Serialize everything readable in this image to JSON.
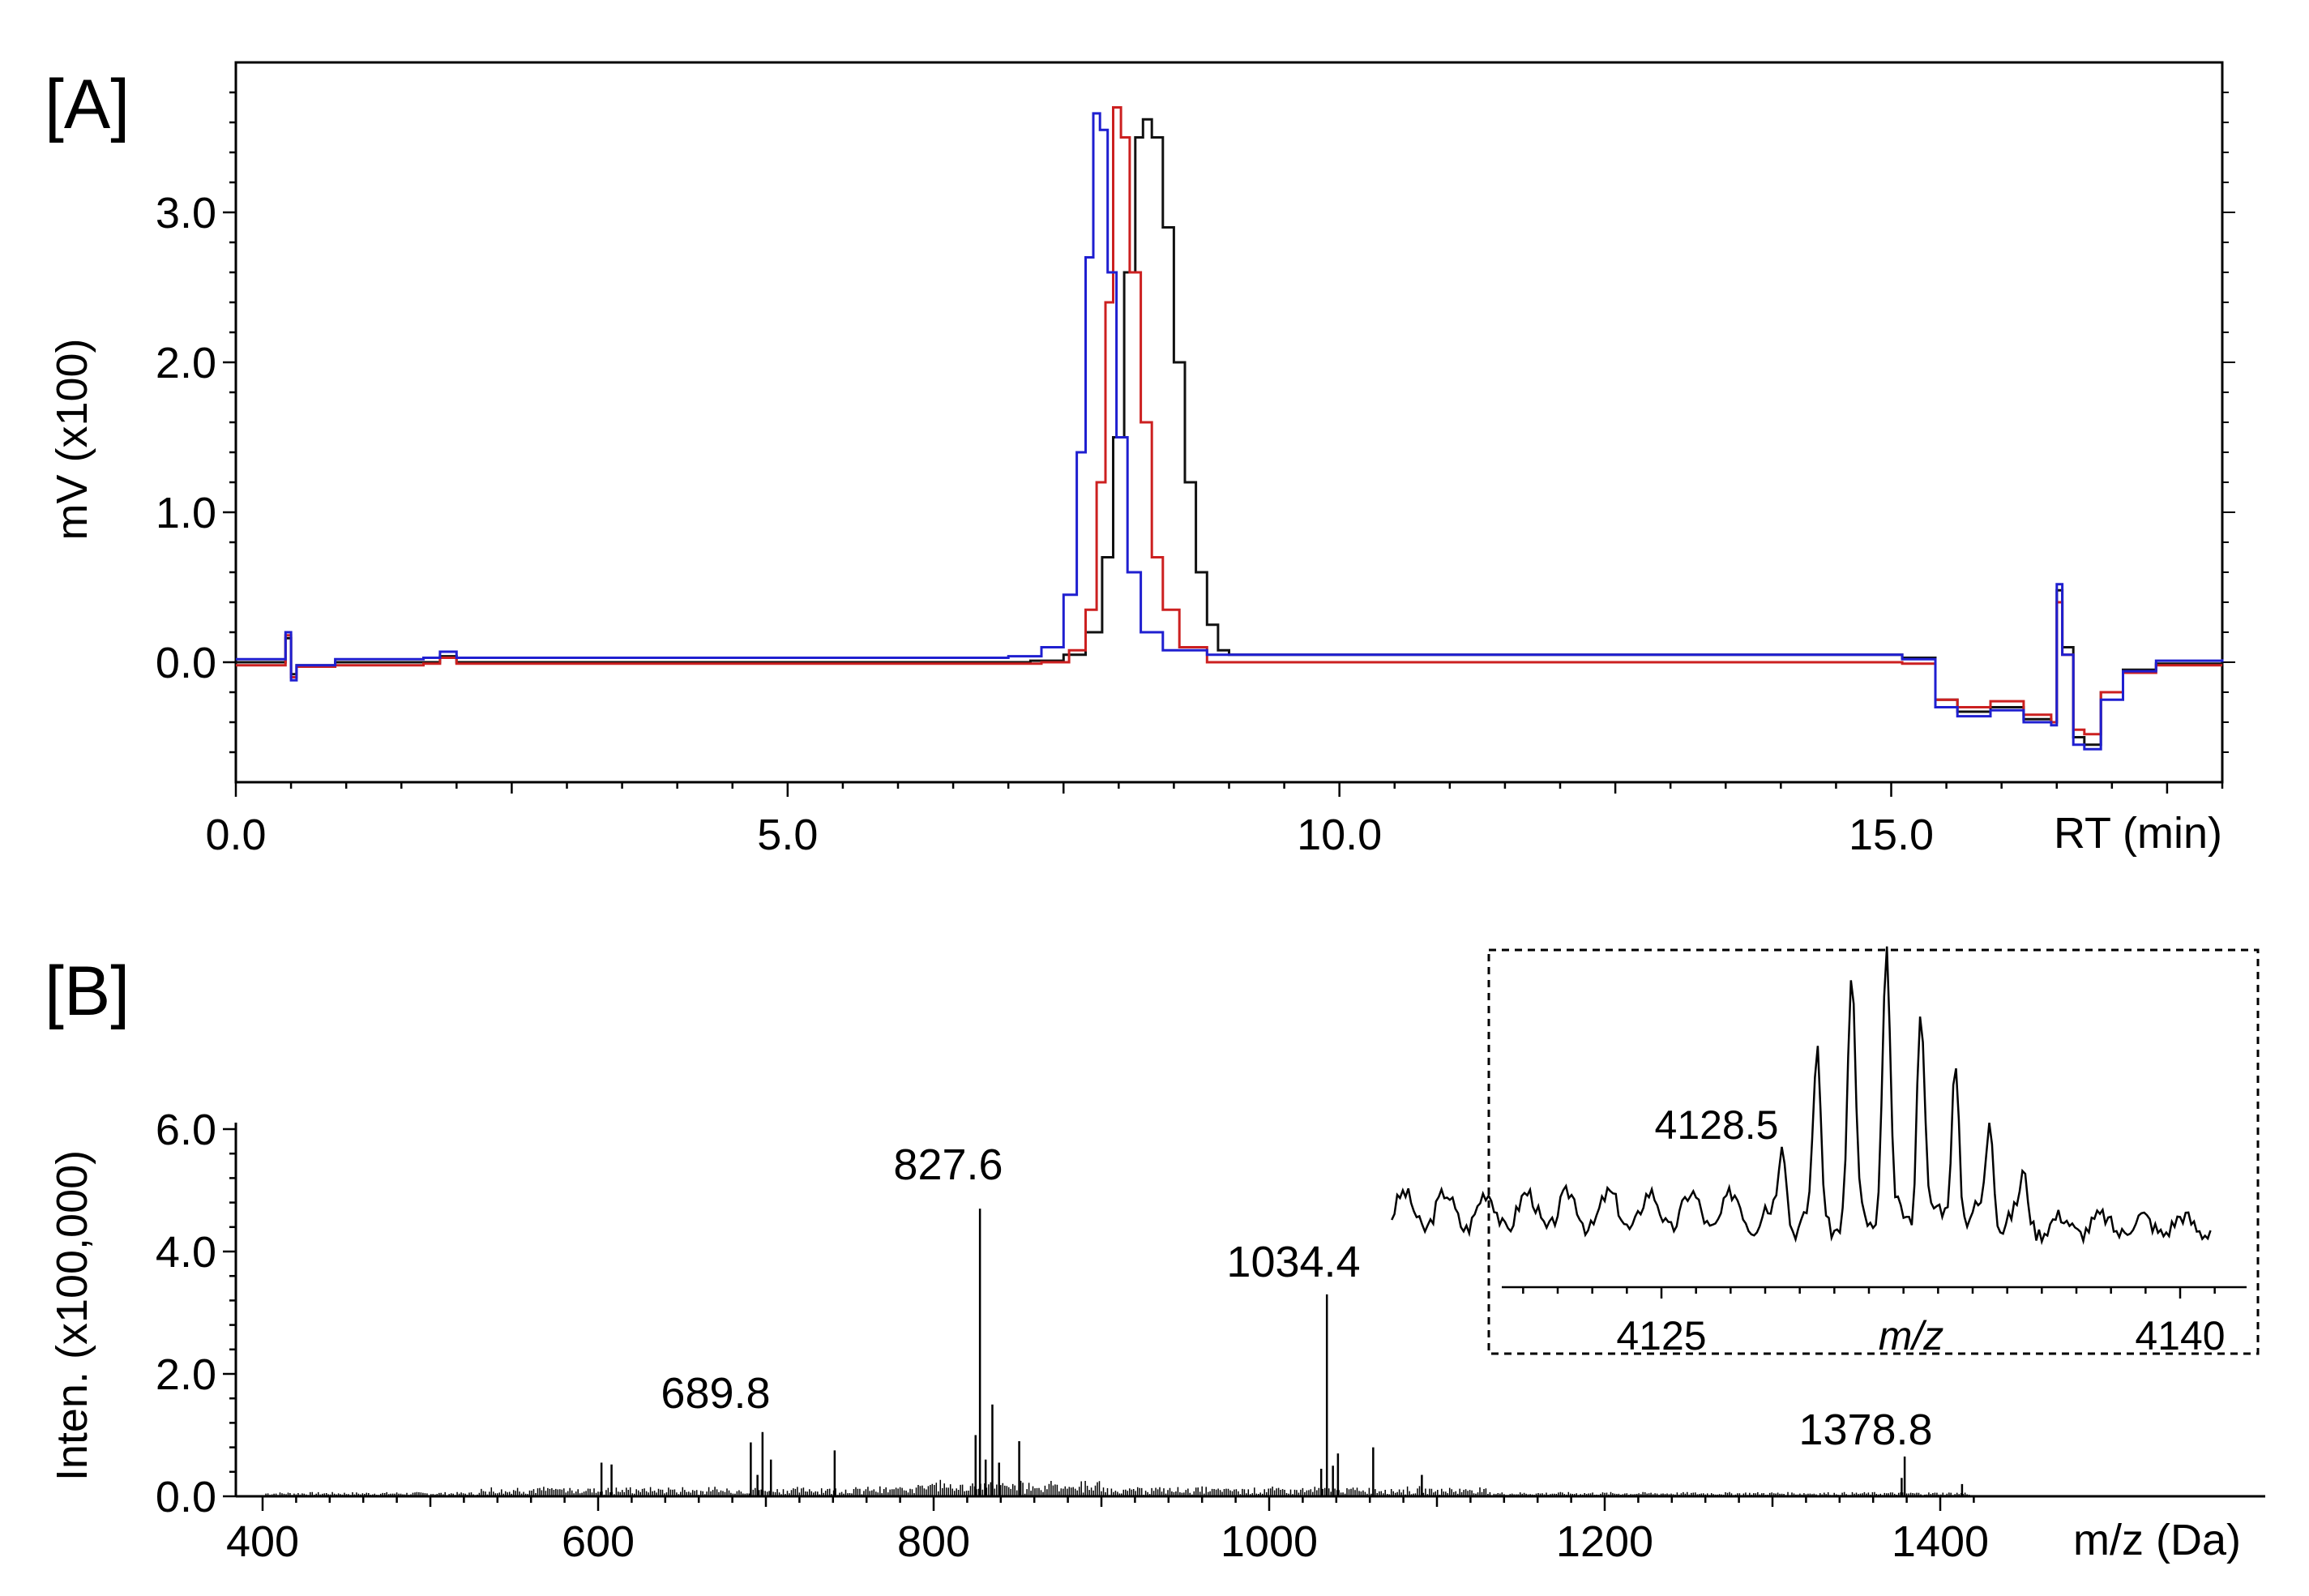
{
  "figure": {
    "panel_a_label": "[A]",
    "panel_b_label": "[B]"
  },
  "chart_data": [
    {
      "type": "line",
      "panel": "[A]",
      "xlabel": "RT (min)",
      "ylabel": "mV (x100)",
      "xlim": [
        0,
        18
      ],
      "ylim": [
        -0.8,
        4.0
      ],
      "x_tick_labels": [
        "0.0",
        "5.0",
        "10.0",
        "15.0"
      ],
      "x_ticks": [
        0,
        5,
        10,
        15
      ],
      "y_tick_labels": [
        "0.0",
        "1.0",
        "2.0",
        "3.0"
      ],
      "y_ticks": [
        0,
        1,
        2,
        3
      ],
      "grid": false,
      "colors": {
        "black": "#111111",
        "red": "#cc2020",
        "blue": "#1f1fd0"
      },
      "series": [
        {
          "color": "black",
          "baseline": 0.0,
          "peak": {
            "center": 8.2,
            "height": 3.62,
            "width_left": 0.19,
            "width_right": 0.24
          },
          "points": [
            [
              0.0,
              0.0
            ],
            [
              0.42,
              0.0
            ],
            [
              0.45,
              0.16
            ],
            [
              0.5,
              -0.08
            ],
            [
              0.55,
              -0.02
            ],
            [
              0.9,
              0.0
            ],
            [
              1.7,
              0.0
            ],
            [
              1.85,
              0.04
            ],
            [
              2.0,
              0.0
            ],
            [
              7.2,
              0.01
            ],
            [
              7.5,
              0.05
            ],
            [
              7.7,
              0.2
            ],
            [
              7.85,
              0.7
            ],
            [
              7.95,
              1.5
            ],
            [
              8.05,
              2.6
            ],
            [
              8.15,
              3.5
            ],
            [
              8.22,
              3.62
            ],
            [
              8.3,
              3.5
            ],
            [
              8.4,
              2.9
            ],
            [
              8.5,
              2.0
            ],
            [
              8.6,
              1.2
            ],
            [
              8.7,
              0.6
            ],
            [
              8.8,
              0.25
            ],
            [
              8.9,
              0.08
            ],
            [
              9.0,
              0.05
            ],
            [
              15.1,
              0.03
            ],
            [
              15.4,
              -0.25
            ],
            [
              15.6,
              -0.33
            ],
            [
              15.9,
              -0.3
            ],
            [
              16.2,
              -0.38
            ],
            [
              16.45,
              -0.4
            ],
            [
              16.5,
              0.48
            ],
            [
              16.55,
              0.1
            ],
            [
              16.65,
              -0.5
            ],
            [
              16.75,
              -0.55
            ],
            [
              16.9,
              -0.2
            ],
            [
              17.1,
              -0.05
            ],
            [
              17.4,
              -0.01
            ],
            [
              18.0,
              0.0
            ]
          ]
        },
        {
          "color": "red",
          "baseline": -0.02,
          "peak": {
            "center": 7.95,
            "height": 3.7,
            "width_left": 0.15,
            "width_right": 0.2
          },
          "points": [
            [
              0.0,
              -0.02
            ],
            [
              0.42,
              -0.02
            ],
            [
              0.45,
              0.18
            ],
            [
              0.5,
              -0.1
            ],
            [
              0.55,
              -0.03
            ],
            [
              0.9,
              -0.02
            ],
            [
              1.7,
              -0.01
            ],
            [
              1.85,
              0.03
            ],
            [
              2.0,
              -0.01
            ],
            [
              7.3,
              0.0
            ],
            [
              7.55,
              0.08
            ],
            [
              7.7,
              0.35
            ],
            [
              7.8,
              1.2
            ],
            [
              7.88,
              2.4
            ],
            [
              7.95,
              3.7
            ],
            [
              8.02,
              3.5
            ],
            [
              8.1,
              2.6
            ],
            [
              8.2,
              1.6
            ],
            [
              8.3,
              0.7
            ],
            [
              8.4,
              0.35
            ],
            [
              8.55,
              0.1
            ],
            [
              8.8,
              0.0
            ],
            [
              15.1,
              -0.01
            ],
            [
              15.4,
              -0.25
            ],
            [
              15.6,
              -0.3
            ],
            [
              15.9,
              -0.26
            ],
            [
              16.2,
              -0.35
            ],
            [
              16.45,
              -0.4
            ],
            [
              16.5,
              0.4
            ],
            [
              16.55,
              0.05
            ],
            [
              16.65,
              -0.45
            ],
            [
              16.75,
              -0.48
            ],
            [
              16.9,
              -0.2
            ],
            [
              17.1,
              -0.07
            ],
            [
              17.4,
              -0.02
            ],
            [
              18.0,
              -0.02
            ]
          ]
        },
        {
          "color": "blue",
          "baseline": 0.02,
          "peak": {
            "center": 7.8,
            "height": 3.66,
            "width_left": 0.18,
            "width_right": 0.16
          },
          "points": [
            [
              0.0,
              0.02
            ],
            [
              0.42,
              0.02
            ],
            [
              0.45,
              0.2
            ],
            [
              0.5,
              -0.12
            ],
            [
              0.55,
              -0.02
            ],
            [
              0.9,
              0.02
            ],
            [
              1.7,
              0.03
            ],
            [
              1.85,
              0.07
            ],
            [
              2.0,
              0.03
            ],
            [
              7.0,
              0.04
            ],
            [
              7.3,
              0.1
            ],
            [
              7.5,
              0.45
            ],
            [
              7.62,
              1.4
            ],
            [
              7.7,
              2.7
            ],
            [
              7.77,
              3.66
            ],
            [
              7.83,
              3.55
            ],
            [
              7.9,
              2.6
            ],
            [
              7.98,
              1.5
            ],
            [
              8.08,
              0.6
            ],
            [
              8.2,
              0.2
            ],
            [
              8.4,
              0.08
            ],
            [
              8.8,
              0.05
            ],
            [
              15.1,
              0.02
            ],
            [
              15.4,
              -0.3
            ],
            [
              15.6,
              -0.36
            ],
            [
              15.9,
              -0.32
            ],
            [
              16.2,
              -0.4
            ],
            [
              16.45,
              -0.42
            ],
            [
              16.5,
              0.52
            ],
            [
              16.55,
              0.05
            ],
            [
              16.65,
              -0.55
            ],
            [
              16.75,
              -0.58
            ],
            [
              16.9,
              -0.25
            ],
            [
              17.1,
              -0.06
            ],
            [
              17.4,
              0.01
            ],
            [
              18.0,
              0.02
            ]
          ]
        }
      ]
    },
    {
      "type": "bar",
      "panel": "[B]",
      "xlabel": "m/z (Da)",
      "ylabel": "Inten. (x100,000)",
      "xlim": [
        390,
        1420
      ],
      "ylim": [
        0,
        6.0
      ],
      "x_tick_labels": [
        "400",
        "600",
        "800",
        "1000",
        "1200",
        "1400"
      ],
      "x_ticks": [
        400,
        600,
        800,
        1000,
        1200,
        1400
      ],
      "y_tick_labels": [
        "0.0",
        "2.0",
        "4.0",
        "6.0"
      ],
      "y_ticks": [
        0,
        2,
        4,
        6
      ],
      "grid": false,
      "peak_labels": [
        "689.8",
        "827.6",
        "1034.4",
        "1378.8"
      ],
      "peaks": [
        {
          "mz": 602,
          "intensity": 0.55
        },
        {
          "mz": 608,
          "intensity": 0.52
        },
        {
          "mz": 691,
          "intensity": 0.88
        },
        {
          "mz": 695,
          "intensity": 0.35
        },
        {
          "mz": 698,
          "intensity": 1.05
        },
        {
          "mz": 703,
          "intensity": 0.6
        },
        {
          "mz": 741,
          "intensity": 0.75
        },
        {
          "mz": 825,
          "intensity": 1.0
        },
        {
          "mz": 827.6,
          "intensity": 4.7
        },
        {
          "mz": 831,
          "intensity": 0.6
        },
        {
          "mz": 835,
          "intensity": 1.5
        },
        {
          "mz": 839,
          "intensity": 0.55
        },
        {
          "mz": 851,
          "intensity": 0.9
        },
        {
          "mz": 1031,
          "intensity": 0.45
        },
        {
          "mz": 1034.4,
          "intensity": 3.3
        },
        {
          "mz": 1038,
          "intensity": 0.5
        },
        {
          "mz": 1041,
          "intensity": 0.7
        },
        {
          "mz": 1062,
          "intensity": 0.8
        },
        {
          "mz": 1091,
          "intensity": 0.35
        },
        {
          "mz": 1377,
          "intensity": 0.3
        },
        {
          "mz": 1378.8,
          "intensity": 0.65
        },
        {
          "mz": 1413,
          "intensity": 0.2
        }
      ]
    },
    {
      "type": "line",
      "panel": "[B] inset",
      "xlabel": "m/z",
      "xlim": [
        4117,
        4141
      ],
      "x_tick_labels": [
        "4125",
        "4140"
      ],
      "x_ticks": [
        4125,
        4140
      ],
      "annotation": "4128.5",
      "isotope_peaks": [
        {
          "mz": 4128.5,
          "intensity": 0.28
        },
        {
          "mz": 4129.5,
          "intensity": 0.58
        },
        {
          "mz": 4130.5,
          "intensity": 0.86
        },
        {
          "mz": 4131.5,
          "intensity": 1.0
        },
        {
          "mz": 4132.5,
          "intensity": 0.82
        },
        {
          "mz": 4133.5,
          "intensity": 0.6
        },
        {
          "mz": 4134.5,
          "intensity": 0.38
        },
        {
          "mz": 4135.5,
          "intensity": 0.15
        }
      ],
      "noise_level": 0.12
    }
  ]
}
